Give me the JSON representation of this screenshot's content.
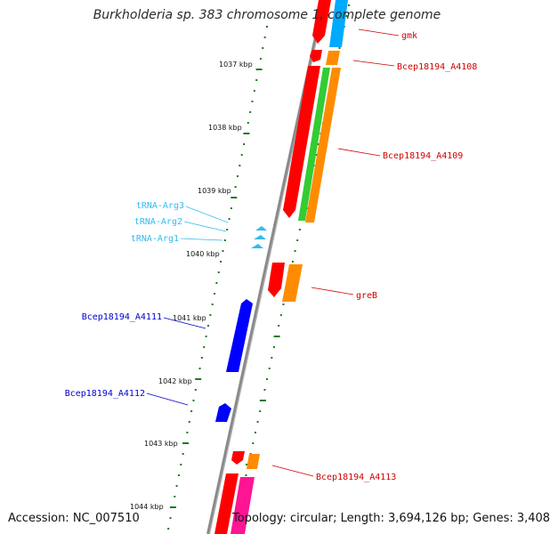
{
  "title": "Burkholderia sp. 383 chromosome 1, complete genome",
  "footer": {
    "accession": "Accession: NC_007510",
    "summary": "Topology: circular; Length: 3,694,126 bp; Genes: 3,408"
  },
  "colors": {
    "backbone": "#8a8a8a",
    "tick": "#1e7a1e",
    "red_gene": "#ff0000",
    "orange_gene": "#ff8c00",
    "green_gene": "#33cc33",
    "cyan_gene": "#00aaff",
    "blue_gene": "#0000ff",
    "magenta_gene": "#ff1493",
    "trna": "#33bbee",
    "label_red": "#d00000",
    "label_blue": "#0000cc",
    "label_cyan": "#33bbee"
  },
  "ruler": {
    "labels": [
      "1037 kbp",
      "1038 kbp",
      "1039 kbp",
      "1040 kbp",
      "1041 kbp",
      "1042 kbp",
      "1043 kbp",
      "1044 kbp"
    ]
  },
  "labels": {
    "gmk": "gmk",
    "a4108": "Bcep18194_A4108",
    "a4109": "Bcep18194_A4109",
    "greb": "greB",
    "a4113": "Bcep18194_A4113",
    "a4111": "Bcep18194_A4111",
    "a4112": "Bcep18194_A4112",
    "trna_arg3": "tRNA-Arg3",
    "trna_arg2": "tRNA-Arg2",
    "trna_arg1": "tRNA-Arg1"
  }
}
